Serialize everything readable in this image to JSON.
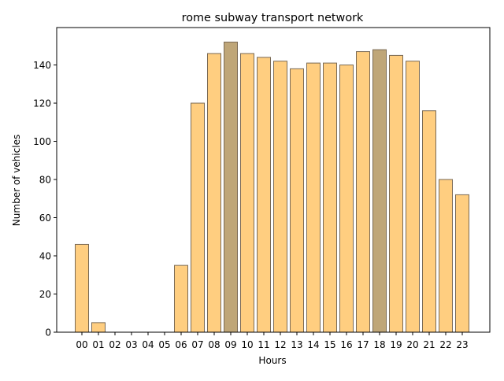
{
  "chart_data": {
    "type": "bar",
    "title": "rome subway transport network",
    "xlabel": "Hours",
    "ylabel": "Number of vehicles",
    "categories": [
      "00",
      "01",
      "02",
      "03",
      "04",
      "05",
      "06",
      "07",
      "08",
      "09",
      "10",
      "11",
      "12",
      "13",
      "14",
      "15",
      "16",
      "17",
      "18",
      "19",
      "20",
      "21",
      "22",
      "23"
    ],
    "values": [
      46,
      5,
      0,
      0,
      0,
      0,
      35,
      120,
      146,
      152,
      146,
      144,
      142,
      138,
      141,
      141,
      140,
      147,
      148,
      145,
      142,
      116,
      80,
      72
    ],
    "highlighted_categories": [
      "09",
      "18"
    ],
    "ylim": [
      0,
      159.6
    ],
    "yticks": [
      0,
      20,
      40,
      60,
      80,
      100,
      120,
      140
    ],
    "grid": false,
    "colors": {
      "bar": "#ffce80",
      "bar_highlight": "#bfa678",
      "bar_edge": "#7a6a55",
      "axis": "#000000"
    }
  }
}
